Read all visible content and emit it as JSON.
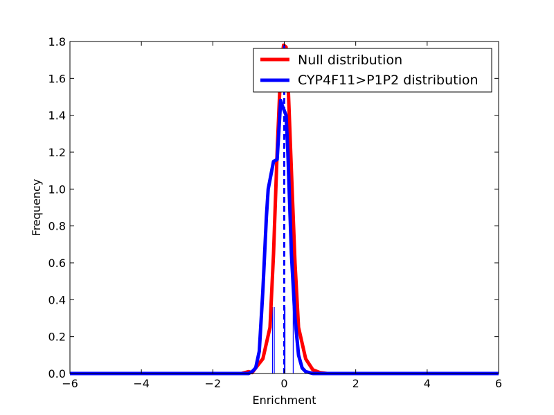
{
  "chart_data": {
    "type": "line",
    "title": "",
    "xlabel": "Enrichment",
    "ylabel": "Frequency",
    "xlim": [
      -6,
      6
    ],
    "ylim": [
      0,
      1.8
    ],
    "x_ticks": [
      -6,
      -4,
      -2,
      0,
      2,
      4,
      6
    ],
    "x_tick_labels": [
      "−6",
      "−4",
      "−2",
      "0",
      "2",
      "4",
      "6"
    ],
    "y_ticks": [
      0.0,
      0.2,
      0.4,
      0.6,
      0.8,
      1.0,
      1.2,
      1.4,
      1.6,
      1.8
    ],
    "y_tick_labels": [
      "0.0",
      "0.2",
      "0.4",
      "0.6",
      "0.8",
      "1.0",
      "1.2",
      "1.4",
      "1.6",
      "1.8"
    ],
    "grid": false,
    "legend_position": "top-right",
    "series": [
      {
        "name": "Null distribution",
        "color": "#ff0000",
        "x": [
          -6,
          -1.2,
          -1.0,
          -0.9,
          -0.8,
          -0.6,
          -0.4,
          -0.3,
          -0.2,
          -0.1,
          -0.02,
          0.05,
          0.1,
          0.2,
          0.3,
          0.4,
          0.6,
          0.8,
          1.0,
          1.2,
          6
        ],
        "y": [
          0.0,
          0.0,
          0.01,
          0.005,
          0.03,
          0.08,
          0.25,
          0.65,
          1.2,
          1.65,
          1.78,
          1.77,
          1.6,
          1.1,
          0.6,
          0.25,
          0.08,
          0.02,
          0.005,
          0.0,
          0.0
        ]
      },
      {
        "name": "CYP4F11>P1P2 distribution",
        "color": "#0000ff",
        "x": [
          -6,
          -1.0,
          -0.9,
          -0.8,
          -0.7,
          -0.6,
          -0.5,
          -0.45,
          -0.3,
          -0.2,
          -0.1,
          -0.05,
          0.05,
          0.1,
          0.2,
          0.3,
          0.4,
          0.5,
          0.6,
          0.8,
          6
        ],
        "y": [
          0.0,
          0.0,
          0.01,
          0.03,
          0.12,
          0.45,
          0.85,
          1.0,
          1.15,
          1.16,
          1.48,
          1.45,
          1.4,
          1.2,
          0.65,
          0.3,
          0.1,
          0.03,
          0.01,
          0.0,
          0.0
        ]
      }
    ],
    "markers": {
      "color": "#0000ff",
      "dashed_line_x": 0.0,
      "dashed_line_top": 1.78,
      "rug_x": [
        -0.33,
        -0.28,
        0.0,
        0.02,
        0.25
      ],
      "rug_height": 0.36
    }
  }
}
